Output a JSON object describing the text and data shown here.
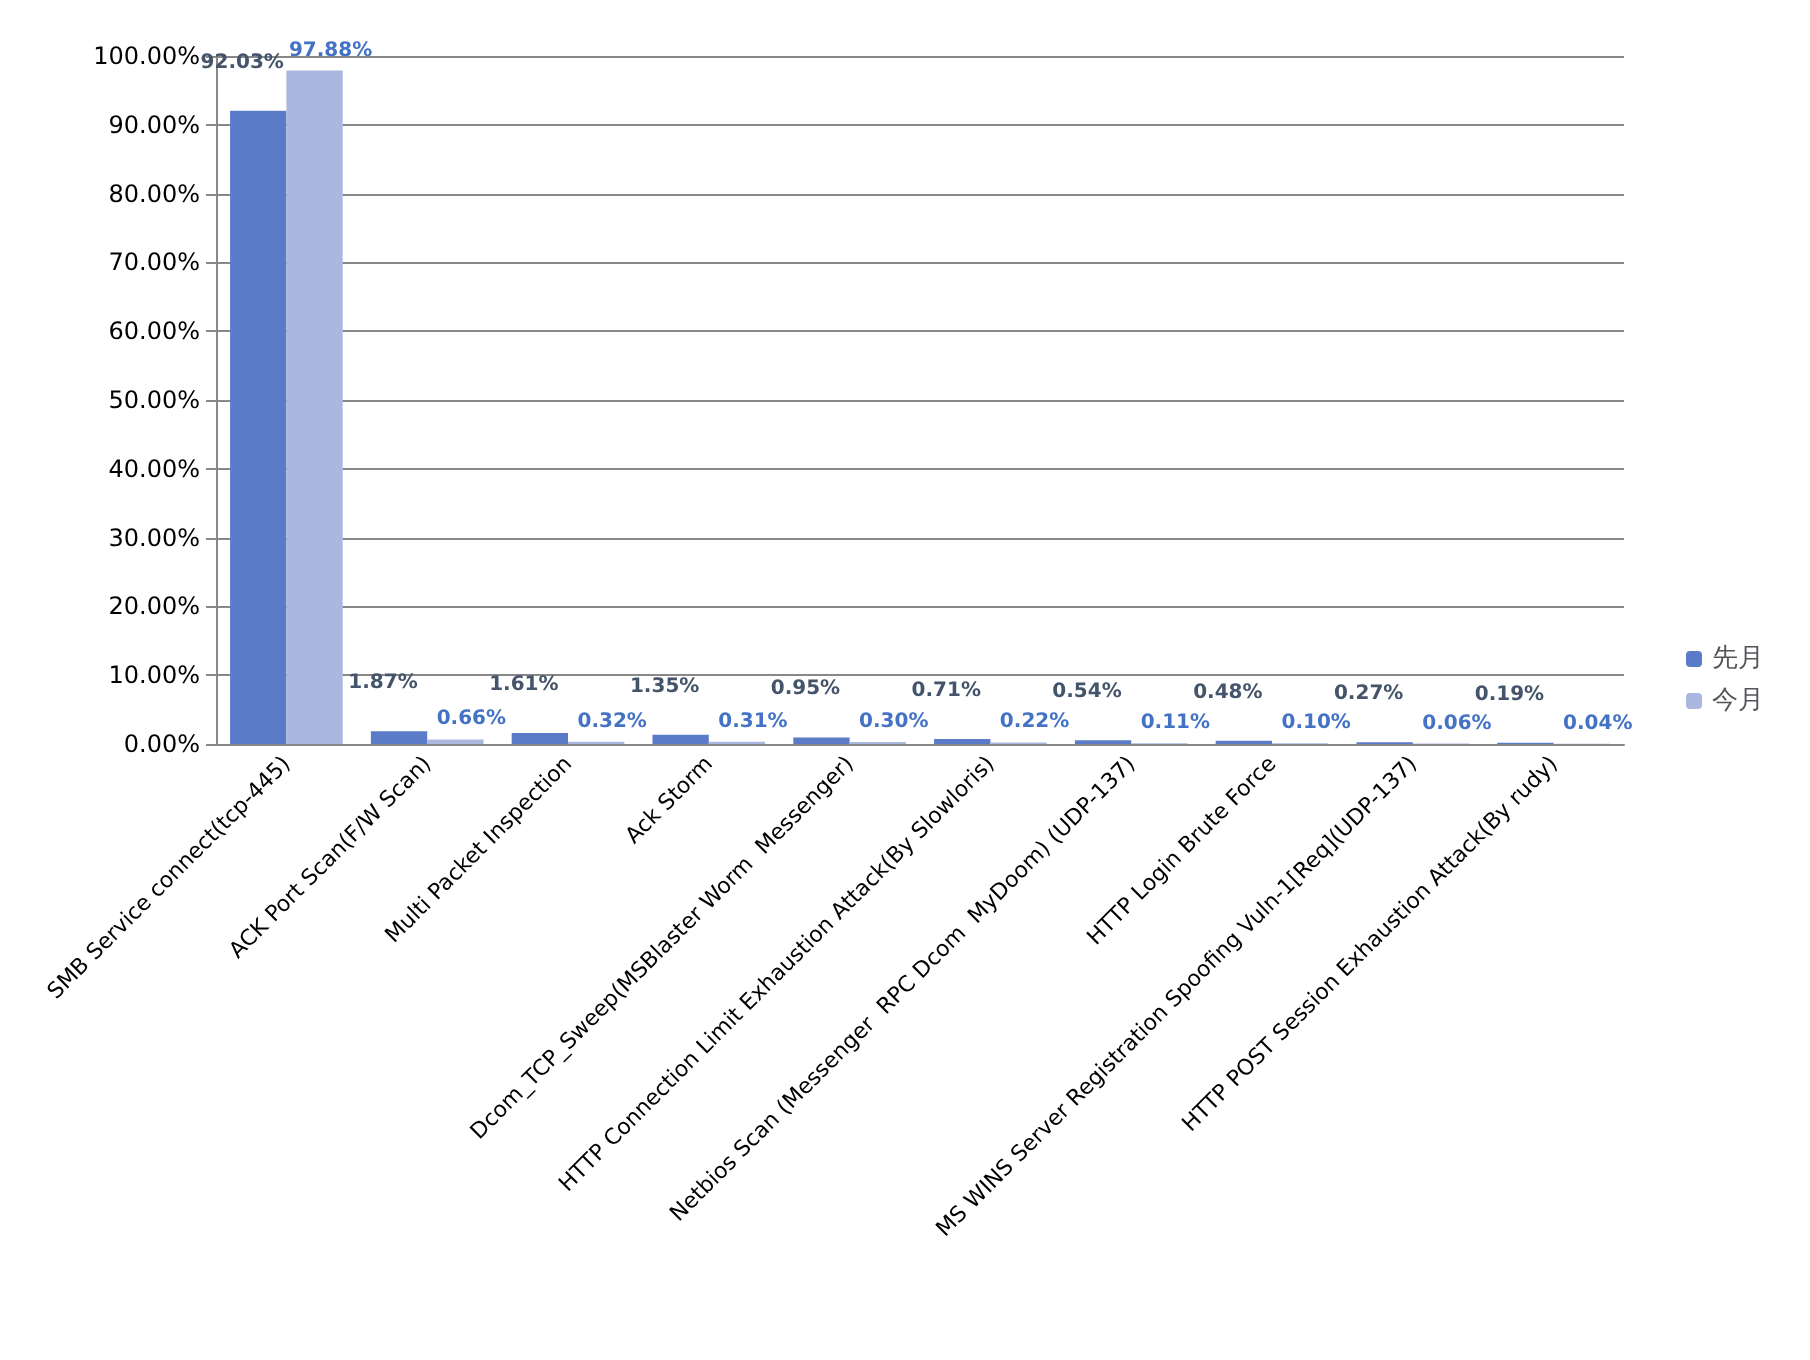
{
  "chart_data": {
    "type": "bar",
    "categories": [
      "SMB Service connect(tcp-445)",
      "ACK Port Scan(F/W Scan)",
      "Multi Packet Inspection",
      "Ack Storm",
      "Dcom_TCP_Sweep(MSBlaster Worm  Messenger)",
      "HTTP Connection Limit Exhaustion Attack(By Slowloris)",
      "Netbios Scan (Messenger  RPC Dcom  MyDoom) (UDP-137)",
      "HTTP Login Brute Force",
      "MS WINS Server Registration Spoofing Vuln-1[Req](UDP-137)",
      "HTTP POST Session Exhaustion Attack(By rudy)"
    ],
    "series": [
      {
        "name": "先月",
        "color": "#5b7bc8",
        "values": [
          92.03,
          1.87,
          1.61,
          1.35,
          0.95,
          0.71,
          0.54,
          0.48,
          0.27,
          0.19
        ],
        "value_labels": [
          "92.03%",
          "1.87%",
          "1.61%",
          "1.35%",
          "0.95%",
          "0.71%",
          "0.54%",
          "0.48%",
          "0.27%",
          "0.19%"
        ]
      },
      {
        "name": "今月",
        "color": "#aab8e0",
        "values": [
          97.88,
          0.66,
          0.32,
          0.31,
          0.3,
          0.22,
          0.11,
          0.1,
          0.06,
          0.04
        ],
        "value_labels": [
          "97.88%",
          "0.66%",
          "0.32%",
          "0.31%",
          "0.30%",
          "0.22%",
          "0.11%",
          "0.10%",
          "0.06%",
          "0.04%"
        ]
      }
    ],
    "ylim": [
      0,
      100
    ],
    "yticks": [
      {
        "value": 0,
        "label": "0.00%"
      },
      {
        "value": 10,
        "label": "10.00%"
      },
      {
        "value": 20,
        "label": "20.00%"
      },
      {
        "value": 30,
        "label": "30.00%"
      },
      {
        "value": 40,
        "label": "40.00%"
      },
      {
        "value": 50,
        "label": "50.00%"
      },
      {
        "value": 60,
        "label": "60.00%"
      },
      {
        "value": 70,
        "label": "70.00%"
      },
      {
        "value": 80,
        "label": "80.00%"
      },
      {
        "value": 90,
        "label": "90.00%"
      },
      {
        "value": 100,
        "label": "100.00%"
      }
    ],
    "grid": "y",
    "legend": "right"
  }
}
